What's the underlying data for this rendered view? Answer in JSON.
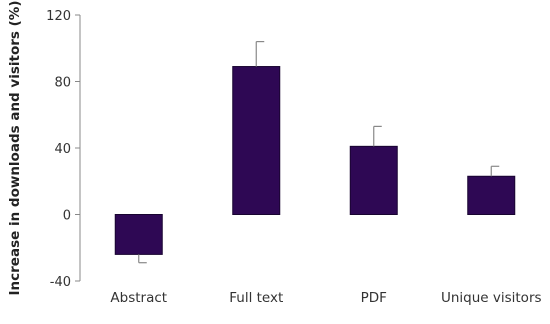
{
  "chart_data": {
    "type": "bar",
    "title": "",
    "xlabel": "",
    "ylabel": "Increase in downloads and visitors (%)",
    "ylim": [
      -40,
      120
    ],
    "yticks": [
      -40,
      0,
      40,
      80,
      120
    ],
    "categories": [
      "Abstract",
      "Full text",
      "PDF",
      "Unique visitors"
    ],
    "series": [
      {
        "values": [
          -24,
          89,
          41,
          23
        ],
        "error_bars": [
          5,
          15,
          12,
          6
        ]
      }
    ],
    "grid": false,
    "legend": "none",
    "colors": {
      "bar_fill": "#2e0854",
      "bar_stroke": "#180430",
      "axis": "#888888",
      "text": "#333333"
    }
  }
}
